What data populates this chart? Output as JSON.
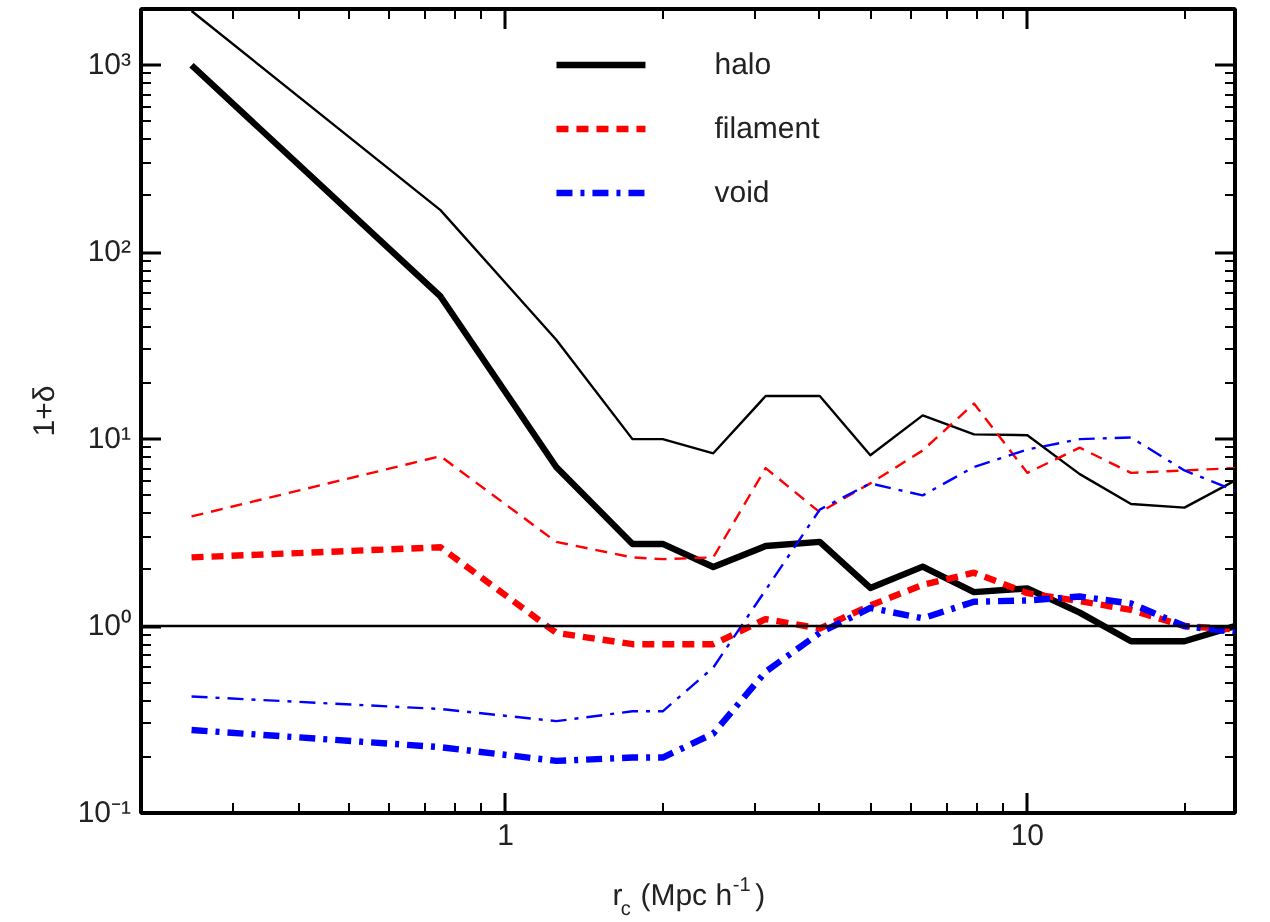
{
  "chart_data": {
    "type": "line",
    "xlabel": "r$_{c}$ (Mpc  h$^{-1}$)",
    "ylabel": "1+δ",
    "log": "xy",
    "grid": false,
    "legend": "top",
    "marker": "none",
    "xlim": [
      0.2,
      25
    ],
    "ylim": [
      0.1,
      2000
    ],
    "xticks": [
      1,
      10
    ],
    "yticks": [
      {
        "value": 0.1,
        "label": "10⁻¹"
      },
      {
        "value": 1,
        "label": "10⁰"
      },
      {
        "value": 10,
        "label": "10¹"
      },
      {
        "value": 100,
        "label": "10²"
      },
      {
        "value": 1000,
        "label": "10³"
      }
    ],
    "x": [
      0.25,
      0.75,
      1.25,
      1.75,
      2,
      2.5,
      3.15,
      4,
      5,
      6.3,
      7.9,
      10,
      12.6,
      15.8,
      20,
      25
    ],
    "series": [
      {
        "name": "halo",
        "color": "#000000",
        "line_style": "solid",
        "values": [
          1000,
          58,
          7.1,
          2.75,
          2.75,
          2.07,
          2.68,
          2.82,
          1.6,
          2.08,
          1.52,
          1.59,
          1.18,
          0.83,
          0.83,
          1.0
        ]
      },
      {
        "name": "filament",
        "color": "#ff0000",
        "line_style": "dashed",
        "values": [
          2.33,
          2.64,
          0.92,
          0.8,
          0.8,
          0.8,
          1.09,
          0.97,
          1.29,
          1.66,
          1.93,
          1.5,
          1.36,
          1.22,
          1.0,
          0.96
        ]
      },
      {
        "name": "void",
        "color": "#0000ff",
        "line_style": "dashdot",
        "values": [
          0.278,
          0.225,
          0.19,
          0.198,
          0.198,
          0.266,
          0.57,
          0.92,
          1.25,
          1.1,
          1.35,
          1.37,
          1.44,
          1.32,
          1.0,
          0.93
        ]
      },
      {
        "color": "#000000",
        "line_style": "solid",
        "values": [
          1950,
          168,
          34,
          10,
          10,
          8.4,
          17,
          17,
          8.2,
          13.4,
          10.6,
          10.5,
          6.5,
          4.5,
          4.3,
          6.0
        ]
      },
      {
        "color": "#ff0000",
        "line_style": "dashed",
        "values": [
          3.86,
          8.1,
          2.82,
          2.33,
          2.28,
          2.33,
          7.0,
          4.06,
          5.8,
          8.7,
          15.5,
          6.6,
          9.0,
          6.6,
          6.8,
          7.0
        ]
      },
      {
        "color": "#0000ff",
        "line_style": "dashdot",
        "values": [
          0.42,
          0.36,
          0.31,
          0.35,
          0.35,
          0.6,
          1.56,
          4.2,
          5.8,
          5.0,
          7.1,
          8.8,
          10,
          10.2,
          6.8,
          5.3
        ]
      }
    ],
    "ref_lines": [
      {
        "axis": "y",
        "value": 1,
        "color": "#000000"
      }
    ]
  }
}
